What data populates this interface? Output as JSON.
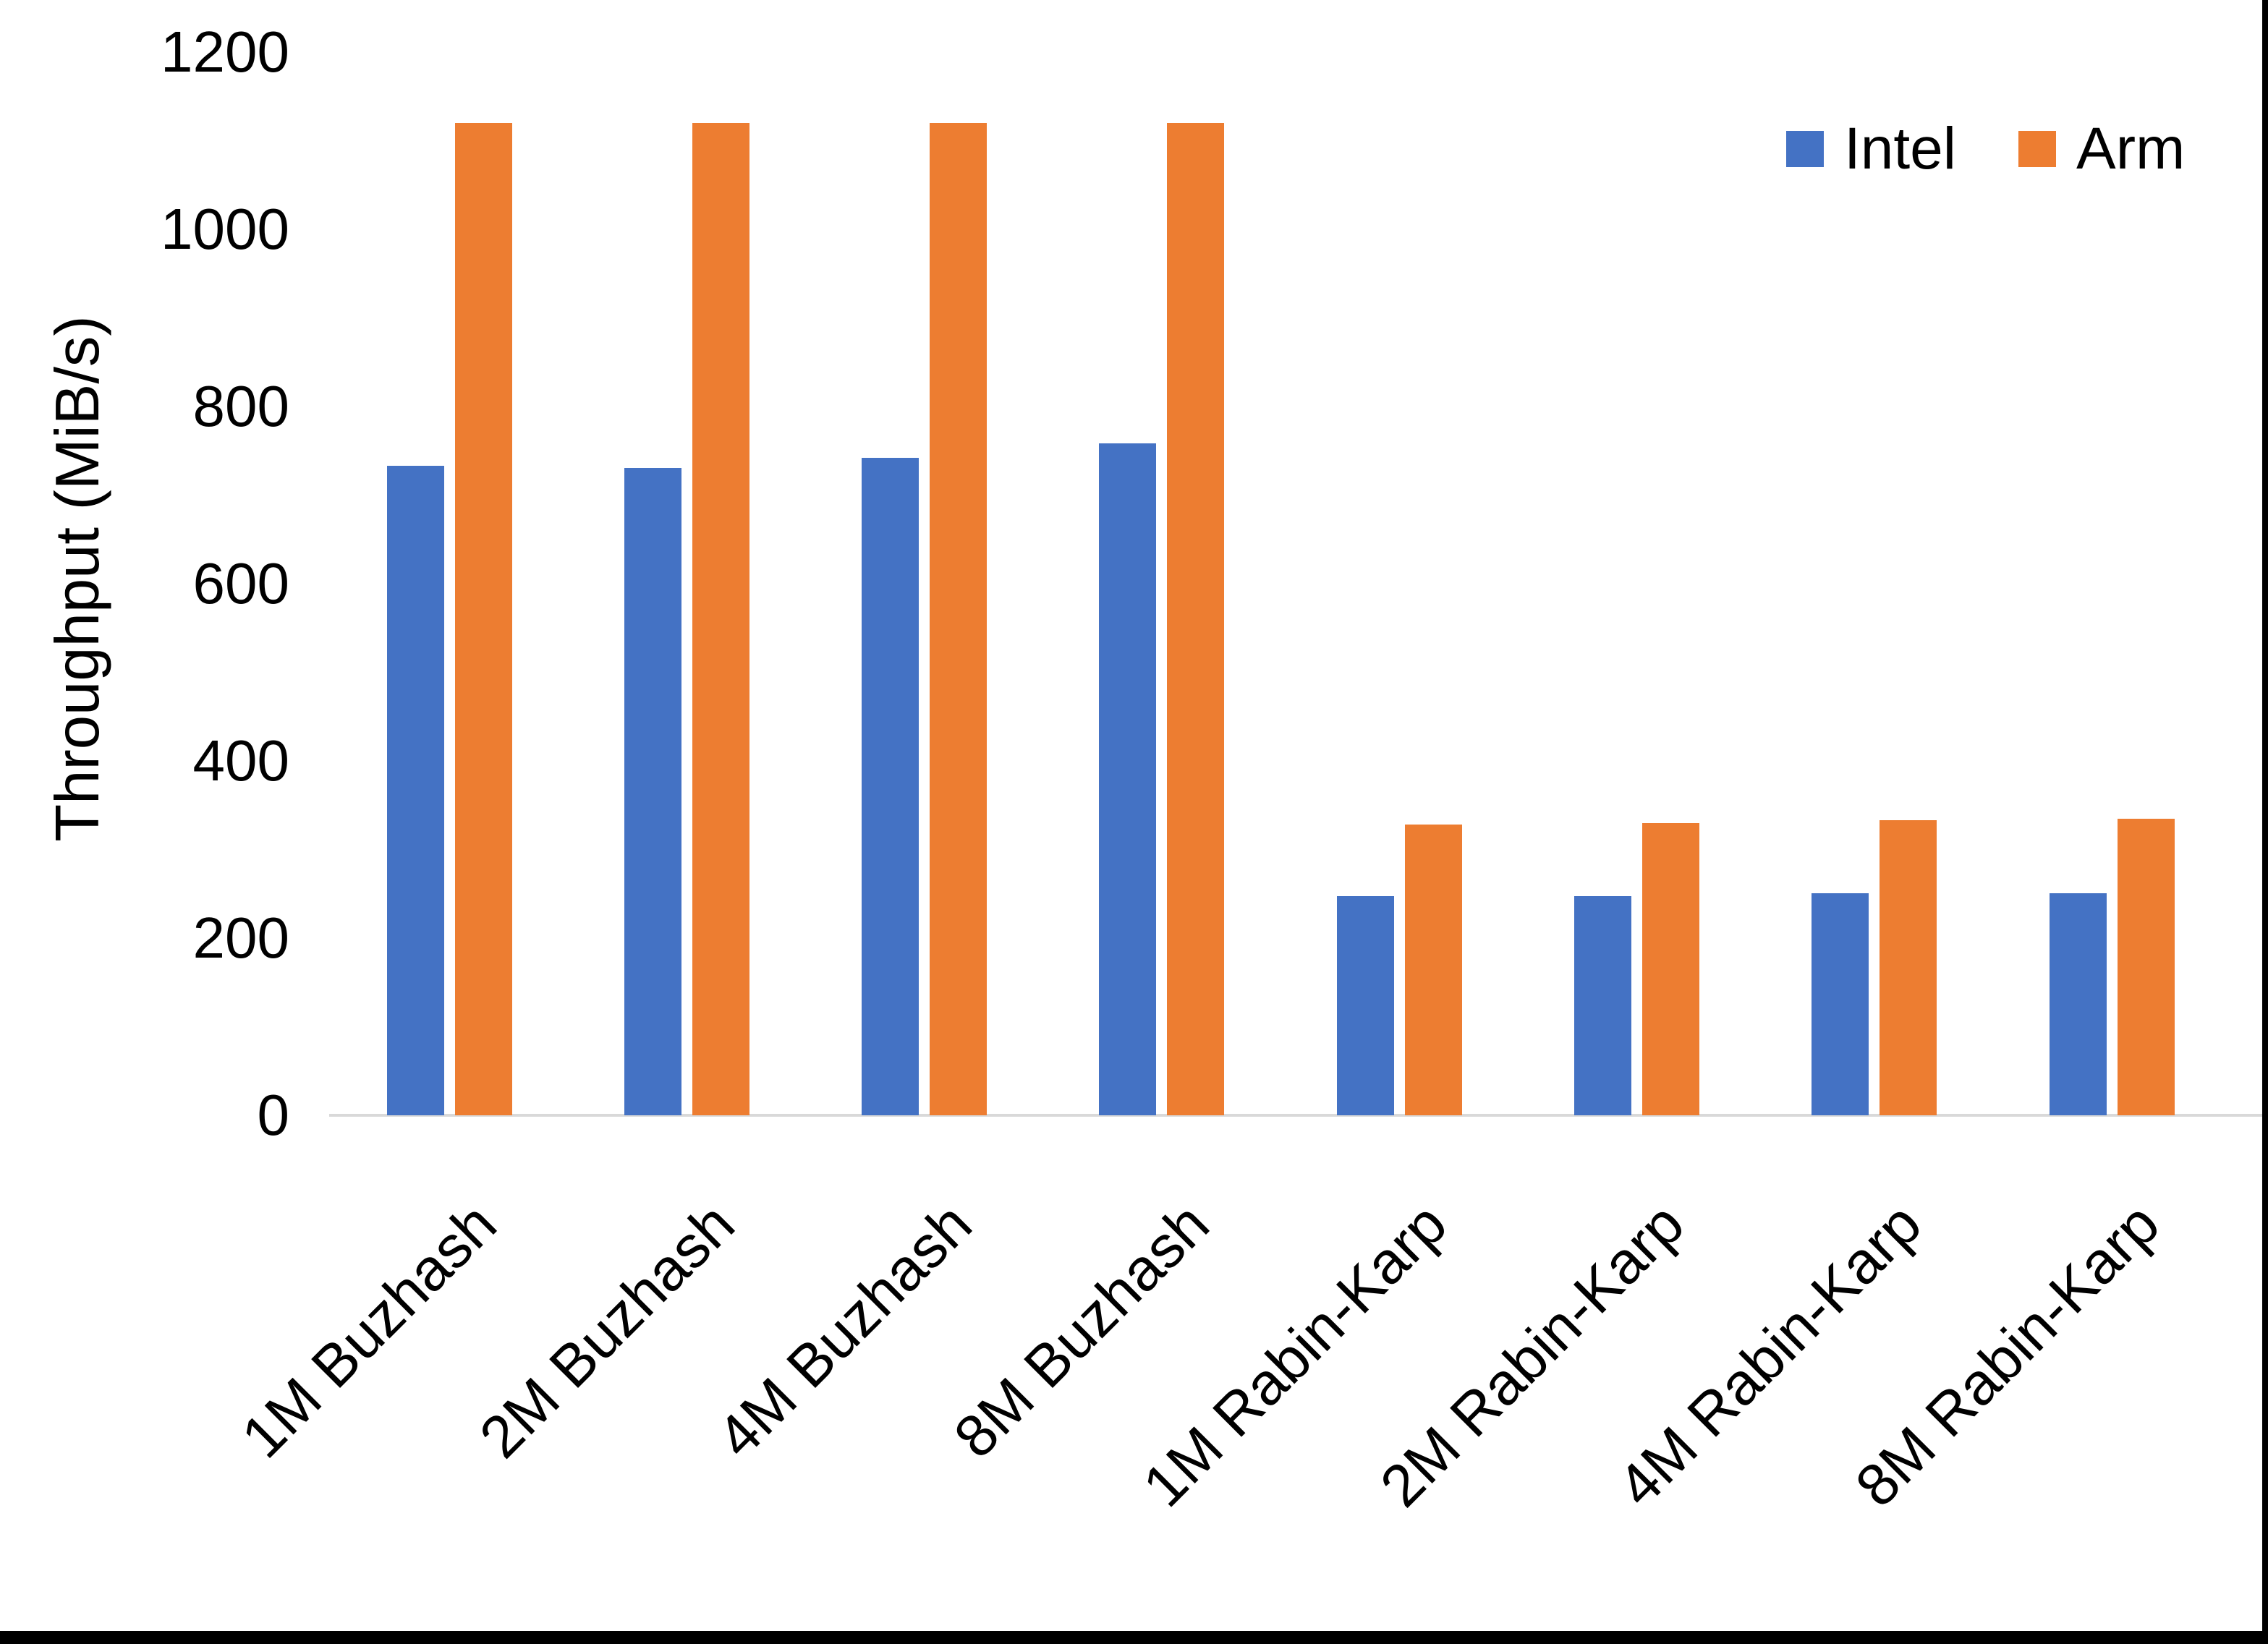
{
  "chart_data": {
    "type": "bar",
    "title": "",
    "xlabel": "",
    "ylabel": "Throughput (MiB/s)",
    "categories": [
      "1M Buzhash",
      "2M Buzhash",
      "4M Buzhash",
      "8M Buzhash",
      "1M Rabin-Karp",
      "2M Rabin-Karp",
      "4M Rabin-Karp",
      "8M Rabin-Karp"
    ],
    "series": [
      {
        "name": "Intel",
        "color": "#4472C4",
        "values": [
          733,
          731,
          742,
          758,
          247,
          247,
          251,
          251
        ]
      },
      {
        "name": "Arm",
        "color": "#ED7D31",
        "values": [
          1120,
          1120,
          1120,
          1120,
          328,
          330,
          333,
          335
        ]
      }
    ],
    "ylim": [
      0,
      1200
    ],
    "yticks": [
      0,
      200,
      400,
      600,
      800,
      1000,
      1200
    ],
    "grid": false,
    "legend": {
      "items": [
        "Intel",
        "Arm"
      ],
      "position": "top-right"
    },
    "axis_line_color": "#D9D9D9",
    "text_color": "#000000",
    "background": "#FFFFFF",
    "frame_color": "#000000"
  }
}
